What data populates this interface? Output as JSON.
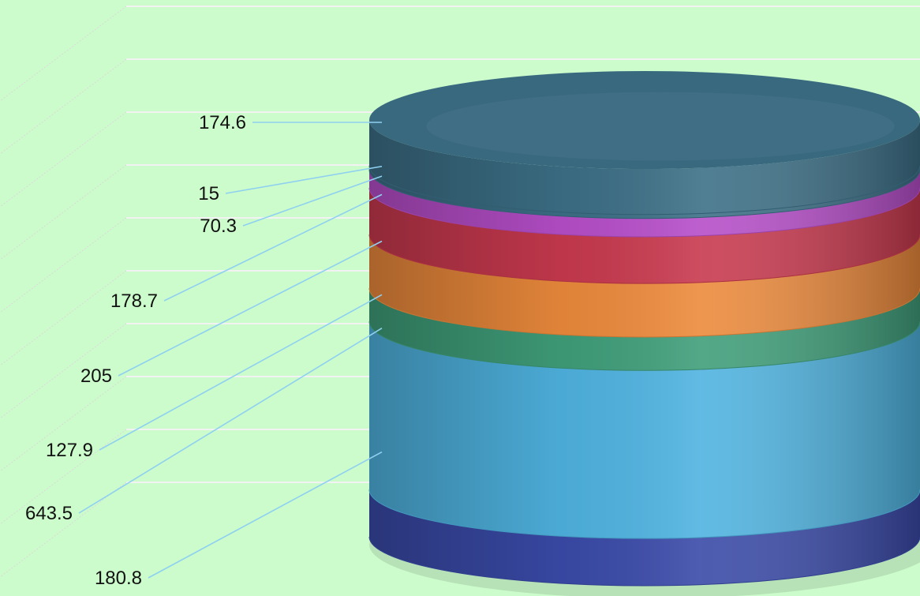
{
  "chart_data": {
    "type": "stacked-cylinder",
    "grid": true,
    "legend": "none",
    "segments_bottom_to_top": [
      {
        "value": 180.8,
        "label": "180.8",
        "color": "#3a4aa8"
      },
      {
        "value": 643.5,
        "label": "643.5",
        "color": "#4fb3e0"
      },
      {
        "value": 127.9,
        "label": "127.9",
        "color": "#3f9e7a"
      },
      {
        "value": 205,
        "label": "205",
        "color": "#ec8a3c"
      },
      {
        "value": 178.7,
        "label": "178.7",
        "color": "#c8394e"
      },
      {
        "value": 70.3,
        "label": "70.3",
        "color": "#b64ec9"
      },
      {
        "value": 15,
        "label": "15",
        "color": "#3c6f86"
      },
      {
        "value": 174.6,
        "label": "174.6",
        "color": "#3c6f86"
      }
    ]
  }
}
